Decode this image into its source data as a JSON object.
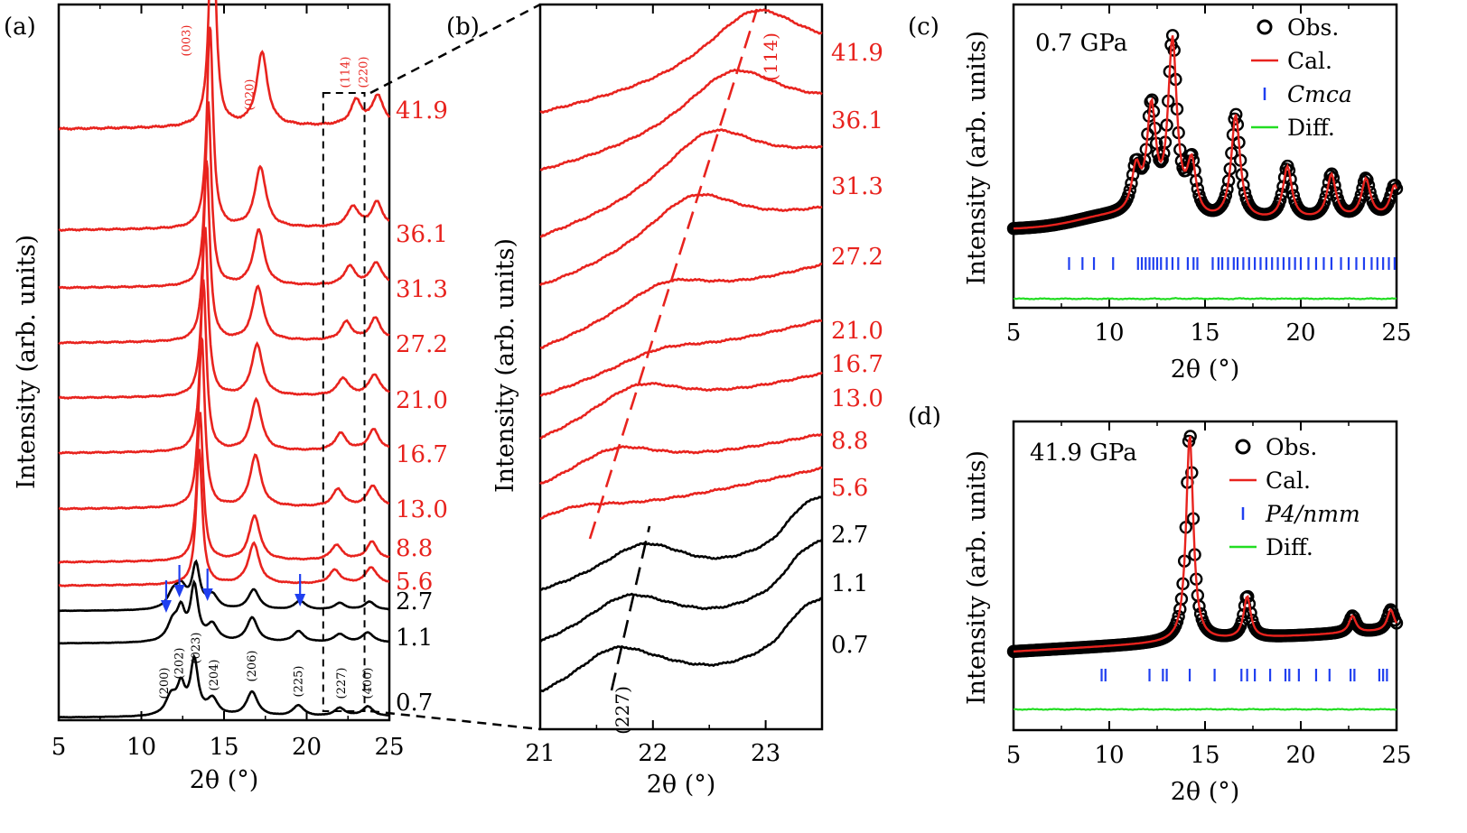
{
  "chart_data": [
    {
      "panel": "(a)",
      "type": "line",
      "xlabel": "2θ (°)",
      "ylabel": "Intensity (arb. units)",
      "xlim": [
        5,
        25
      ],
      "xticks": [
        "5",
        "10",
        "15",
        "20",
        "25"
      ],
      "series": [
        {
          "pressure": "0.7",
          "color": "#000000",
          "phase": "Cmca",
          "peaks": [
            [
              11.8,
              0.35
            ],
            [
              12.4,
              0.5
            ],
            [
              13.2,
              1.0
            ],
            [
              14.3,
              0.3
            ],
            [
              16.7,
              0.45
            ],
            [
              19.5,
              0.2
            ],
            [
              22.0,
              0.15
            ],
            [
              23.7,
              0.18
            ]
          ]
        },
        {
          "pressure": "1.1",
          "color": "#000000",
          "phase": "Cmca",
          "peaks": [
            [
              11.9,
              0.35
            ],
            [
              12.4,
              0.5
            ],
            [
              13.2,
              1.0
            ],
            [
              14.3,
              0.3
            ],
            [
              16.7,
              0.45
            ],
            [
              19.5,
              0.2
            ],
            [
              22.0,
              0.15
            ],
            [
              23.7,
              0.18
            ]
          ]
        },
        {
          "pressure": "2.7",
          "color": "#000000",
          "phase": "Cmca",
          "peaks": [
            [
              11.9,
              0.3
            ],
            [
              12.4,
              0.45
            ],
            [
              13.3,
              0.95
            ],
            [
              14.3,
              0.3
            ],
            [
              16.8,
              0.45
            ],
            [
              19.6,
              0.2
            ],
            [
              22.0,
              0.15
            ],
            [
              23.8,
              0.18
            ]
          ]
        },
        {
          "pressure": "5.6",
          "color": "#e8231e",
          "phase": "P4/nmm",
          "peaks": [
            [
              13.5,
              1.0
            ],
            [
              16.8,
              0.3
            ],
            [
              21.7,
              0.1
            ],
            [
              23.9,
              0.12
            ]
          ]
        },
        {
          "pressure": "8.8",
          "color": "#e8231e",
          "phase": "P4/nmm",
          "peaks": [
            [
              13.55,
              1.0
            ],
            [
              16.85,
              0.3
            ],
            [
              21.8,
              0.1
            ],
            [
              23.95,
              0.12
            ]
          ]
        },
        {
          "pressure": "13.0",
          "color": "#e8231e",
          "phase": "P4/nmm",
          "peaks": [
            [
              13.65,
              1.0
            ],
            [
              16.9,
              0.3
            ],
            [
              21.9,
              0.1
            ],
            [
              24.0,
              0.12
            ]
          ]
        },
        {
          "pressure": "16.7",
          "color": "#e8231e",
          "phase": "P4/nmm",
          "peaks": [
            [
              13.75,
              1.0
            ],
            [
              16.95,
              0.3
            ],
            [
              22.05,
              0.1
            ],
            [
              24.05,
              0.12
            ]
          ]
        },
        {
          "pressure": "21.0",
          "color": "#e8231e",
          "phase": "P4/nmm",
          "peaks": [
            [
              13.85,
              1.0
            ],
            [
              17.0,
              0.3
            ],
            [
              22.2,
              0.1
            ],
            [
              24.1,
              0.12
            ]
          ]
        },
        {
          "pressure": "27.2",
          "color": "#e8231e",
          "phase": "P4/nmm",
          "peaks": [
            [
              13.95,
              1.0
            ],
            [
              17.05,
              0.3
            ],
            [
              22.4,
              0.1
            ],
            [
              24.15,
              0.12
            ]
          ]
        },
        {
          "pressure": "31.3",
          "color": "#e8231e",
          "phase": "P4/nmm",
          "peaks": [
            [
              14.05,
              1.0
            ],
            [
              17.1,
              0.3
            ],
            [
              22.6,
              0.1
            ],
            [
              24.2,
              0.12
            ]
          ]
        },
        {
          "pressure": "36.1",
          "color": "#e8231e",
          "phase": "P4/nmm",
          "peaks": [
            [
              14.15,
              1.0
            ],
            [
              17.2,
              0.3
            ],
            [
              22.8,
              0.1
            ],
            [
              24.25,
              0.12
            ]
          ]
        },
        {
          "pressure": "41.9",
          "color": "#e8231e",
          "phase": "P4/nmm",
          "peaks": [
            [
              14.3,
              1.0
            ],
            [
              17.3,
              0.3
            ],
            [
              23.0,
              0.1
            ],
            [
              24.3,
              0.12
            ]
          ]
        }
      ],
      "hkl_black": [
        {
          "label": "(200)",
          "x": 11.4
        },
        {
          "label": "(202)",
          "x": 12.3
        },
        {
          "label": "(023)",
          "x": 13.3
        },
        {
          "label": "(204)",
          "x": 14.4
        },
        {
          "label": "(206)",
          "x": 16.7
        },
        {
          "label": "(225)",
          "x": 19.5
        },
        {
          "label": "(227)",
          "x": 22.1
        },
        {
          "label": "(400)",
          "x": 23.7
        }
      ],
      "hkl_red": [
        {
          "label": "(003)",
          "x": 13.4
        },
        {
          "label": "(020)",
          "x": 17.2
        },
        {
          "label": "(114)",
          "x": 23.0
        },
        {
          "label": "(220)",
          "x": 24.1
        }
      ],
      "arrows_x": [
        11.5,
        12.3,
        14.0,
        19.6
      ],
      "zoom_box_x": [
        21,
        23.5
      ]
    },
    {
      "panel": "(b)",
      "type": "line",
      "xlabel": "2θ (°)",
      "ylabel": "Intensity (arb. units)",
      "xlim": [
        21,
        23.5
      ],
      "xticks": [
        "21",
        "22",
        "23"
      ],
      "series_peaks": [
        {
          "pressure": "0.7",
          "color": "#000000",
          "peak": 21.65
        },
        {
          "pressure": "1.1",
          "color": "#000000",
          "peak": 21.75
        },
        {
          "pressure": "2.7",
          "color": "#000000",
          "peak": 21.9
        },
        {
          "pressure": "5.6",
          "color": "#e8231e",
          "peak": 21.3
        },
        {
          "pressure": "8.8",
          "color": "#e8231e",
          "peak": 21.65
        },
        {
          "pressure": "13.0",
          "color": "#e8231e",
          "peak": 21.85
        },
        {
          "pressure": "16.7",
          "color": "#e8231e",
          "peak": 22.05
        },
        {
          "pressure": "21.0",
          "color": "#e8231e",
          "peak": 22.1
        },
        {
          "pressure": "27.2",
          "color": "#e8231e",
          "peak": 22.35
        },
        {
          "pressure": "31.3",
          "color": "#e8231e",
          "peak": 22.5
        },
        {
          "pressure": "36.1",
          "color": "#e8231e",
          "peak": 22.7
        },
        {
          "pressure": "41.9",
          "color": "#e8231e",
          "peak": 22.9
        }
      ],
      "guide_labels": {
        "red": "(114)",
        "black": "(227)"
      }
    },
    {
      "panel": "(c)",
      "type": "line",
      "pressure_label": "0.7 GPa",
      "xlabel": "2θ (°)",
      "ylabel": "Intensity (arb. units)",
      "xlim": [
        5,
        25
      ],
      "xticks": [
        "5",
        "10",
        "15",
        "20",
        "25"
      ],
      "legend": [
        "Obs.",
        "Cal.",
        "Cmca",
        "Diff."
      ],
      "peaks": [
        [
          11.4,
          0.25
        ],
        [
          12.2,
          0.6
        ],
        [
          13.3,
          1.0
        ],
        [
          14.3,
          0.3
        ],
        [
          16.6,
          0.6
        ],
        [
          19.3,
          0.3
        ],
        [
          21.6,
          0.25
        ],
        [
          23.4,
          0.22
        ],
        [
          24.9,
          0.18
        ]
      ],
      "tick_marks": [
        7.9,
        8.6,
        9.2,
        10.2,
        11.5,
        11.7,
        11.9,
        12.1,
        12.3,
        12.5,
        12.7,
        13.0,
        13.3,
        13.6,
        14.1,
        14.4,
        14.6,
        15.4,
        15.7,
        15.9,
        16.2,
        16.5,
        16.7,
        17.0,
        17.3,
        17.6,
        17.9,
        18.2,
        18.5,
        18.8,
        19.1,
        19.4,
        19.7,
        20.0,
        20.4,
        20.8,
        21.2,
        21.6,
        22.1,
        22.5,
        22.9,
        23.3,
        23.7,
        24.0,
        24.3,
        24.6,
        24.9
      ]
    },
    {
      "panel": "(d)",
      "type": "line",
      "pressure_label": "41.9 GPa",
      "xlabel": "2θ (°)",
      "ylabel": "Intensity (arb. units)",
      "xlim": [
        5,
        25
      ],
      "xticks": [
        "5",
        "10",
        "15",
        "20",
        "25"
      ],
      "legend": [
        "Obs.",
        "Cal.",
        "P4/nmm",
        "Diff."
      ],
      "peaks": [
        [
          14.2,
          1.0
        ],
        [
          17.2,
          0.2
        ],
        [
          22.7,
          0.08
        ],
        [
          24.7,
          0.1
        ]
      ],
      "tick_marks": [
        9.6,
        9.8,
        12.1,
        12.8,
        13.0,
        14.2,
        15.5,
        16.9,
        17.2,
        17.6,
        18.4,
        19.2,
        19.4,
        19.9,
        20.8,
        21.5,
        22.6,
        22.8,
        24.1,
        24.3,
        24.5
      ]
    }
  ]
}
